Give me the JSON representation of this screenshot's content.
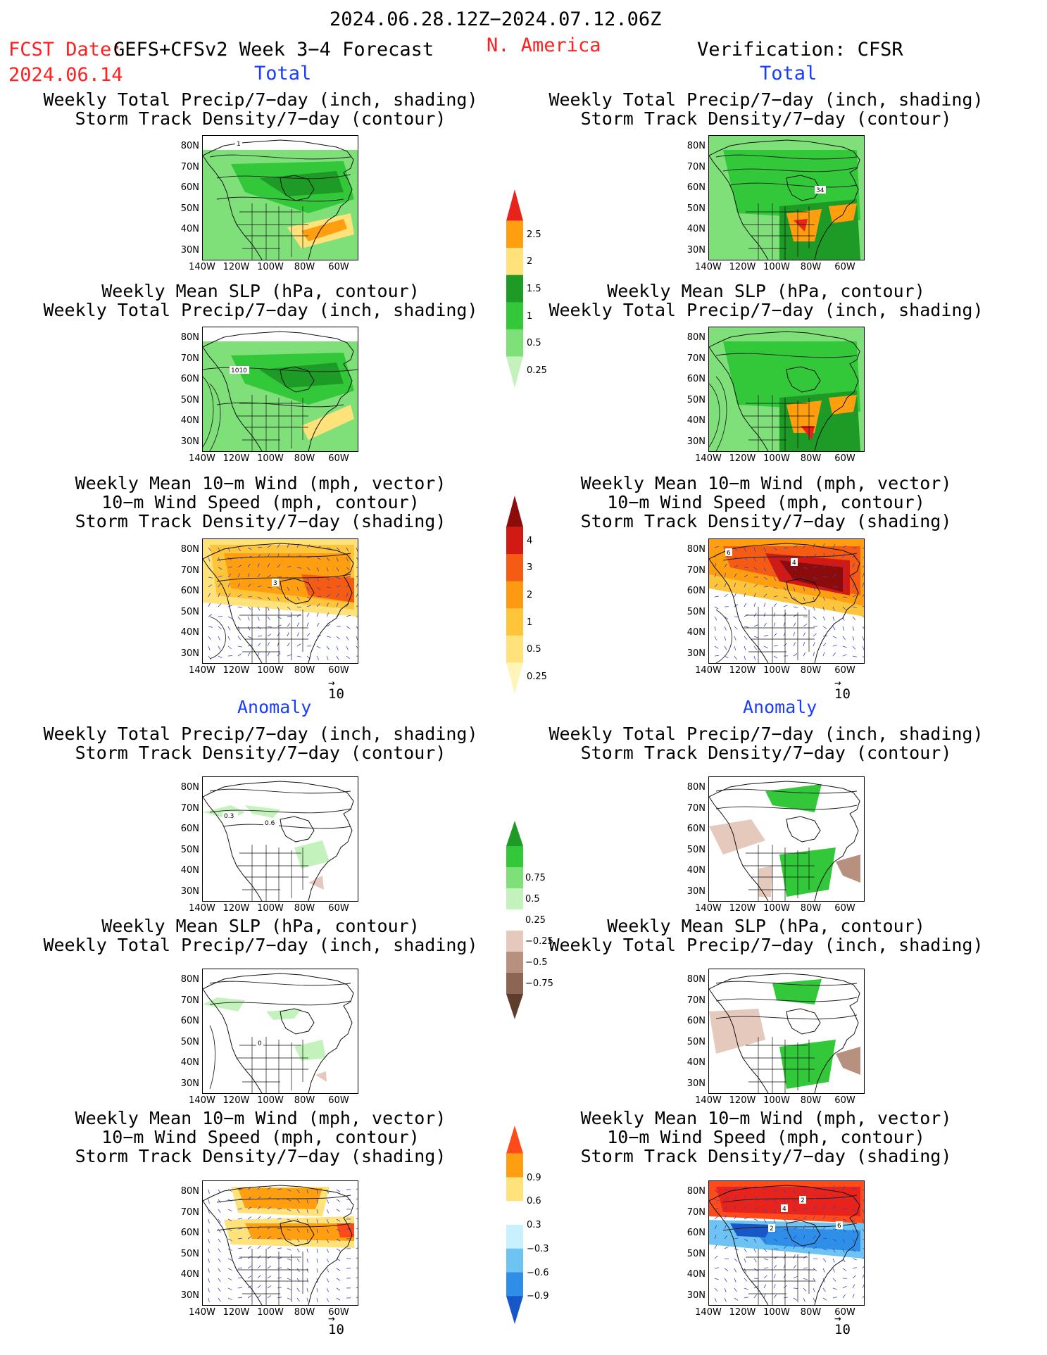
{
  "header": {
    "date_range": "2024.06.28.12Z−2024.07.12.06Z",
    "fcst_label": "FCST Date:",
    "model_label": "GEFS+CFSv2 Week 3−4 Forecast",
    "fcst_date": "2024.06.14",
    "region": "N. America",
    "verification": "Verification: CFSR"
  },
  "section_labels": {
    "total": "Total",
    "anomaly": "Anomaly"
  },
  "titles": {
    "precip_storm": [
      "Weekly Total Precip/7−day (inch, shading)",
      "Storm Track Density/7−day (contour)"
    ],
    "slp_precip": [
      "Weekly Mean SLP (hPa, contour)",
      "Weekly Total Precip/7−day (inch, shading)"
    ],
    "wind_storm": [
      "Weekly Mean 10−m Wind (mph, vector)",
      "10−m Wind Speed (mph, contour)",
      "Storm Track Density/7−day (shading)"
    ]
  },
  "axes": {
    "lat_ticks": [
      "80N",
      "70N",
      "60N",
      "50N",
      "40N",
      "30N"
    ],
    "lon_ticks": [
      "140W",
      "120W",
      "100W",
      "80W",
      "60W"
    ]
  },
  "vector_ref": "10",
  "contour_labels": {
    "p1": "1",
    "p7": "34",
    "p2": "1010",
    "p3": "3",
    "p9a": "6",
    "p9b": "4",
    "p4a": "0.3",
    "p4b": "0.6",
    "p5": "0",
    "p12a": "4",
    "p12b": "2",
    "p12c": "2",
    "p12d": "6"
  },
  "colorbars": {
    "total_precip": {
      "labels": [
        "2.5",
        "2",
        "1.5",
        "1",
        "0.5",
        "0.25"
      ],
      "colors": [
        "#e8231b",
        "#ff9f10",
        "#ffe27a",
        "#1d9b26",
        "#33c83a",
        "#7fe07a",
        "#c4f2bc"
      ]
    },
    "total_storm": {
      "labels": [
        "4",
        "3",
        "2",
        "1",
        "0.5",
        "0.25"
      ],
      "colors": [
        "#8c0b0b",
        "#d11a14",
        "#f55b12",
        "#ff9a10",
        "#ffc53a",
        "#ffe27a",
        "#fff5b8"
      ]
    },
    "anom_precip": {
      "labels": [
        "0.75",
        "0.5",
        "0.25",
        "−0.25",
        "−0.5",
        "−0.75"
      ],
      "colors": [
        "#1d9b26",
        "#33c83a",
        "#7fe07a",
        "#c4f2bc",
        "#ffffff",
        "#e6c9bd",
        "#b89080",
        "#8c6553",
        "#5e3d2c"
      ]
    },
    "anom_wind": {
      "labels": [
        "0.9",
        "0.6",
        "0.3",
        "−0.3",
        "−0.6",
        "−0.9"
      ],
      "colors": [
        "#ff4a1a",
        "#ff9f10",
        "#ffe27a",
        "#ffffff",
        "#c8f0ff",
        "#6dc4f2",
        "#2f8fe8",
        "#1857c8"
      ]
    }
  }
}
